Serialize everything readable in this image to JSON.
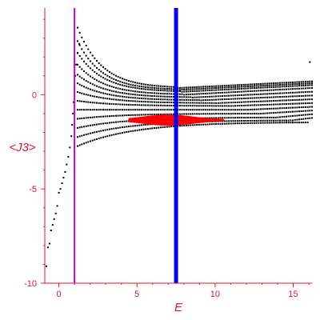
{
  "chart_data": {
    "type": "scatter",
    "title": "",
    "xlabel": "E",
    "ylabel": "<J3>",
    "xlim": [
      -0.9,
      16.2
    ],
    "ylim": [
      -10,
      4.6
    ],
    "x_ticks": [
      0,
      5,
      10,
      15
    ],
    "y_ticks": [
      0,
      -5,
      -10
    ],
    "grid": false,
    "colors": {
      "axis": "#e8112d",
      "points": "#000000",
      "highlight_points": "#ff0000",
      "magenta_line": "#cc00cc",
      "blue_line": "#0000ff"
    },
    "vertical_lines": [
      {
        "x": 1.0,
        "color": "#cc00cc"
      },
      {
        "x": 7.5,
        "color": "#0000ff"
      }
    ],
    "series": [
      {
        "color": "#000000",
        "description_points": [
          [
            -0.8,
            -9.1
          ],
          [
            -0.7,
            -8.1
          ],
          [
            -0.6,
            -7.9
          ],
          [
            -0.5,
            -7.2
          ],
          [
            -0.4,
            -6.9
          ],
          [
            -0.3,
            -6.6
          ],
          [
            -0.2,
            -6.3
          ],
          [
            -0.1,
            -5.9
          ],
          [
            0.0,
            -5.2
          ],
          [
            0.1,
            -5.0
          ],
          [
            0.2,
            -4.7
          ],
          [
            0.3,
            -4.4
          ],
          [
            0.4,
            -4.1
          ],
          [
            0.5,
            -3.7
          ],
          [
            0.6,
            -3.3
          ],
          [
            0.7,
            -2.8
          ],
          [
            0.8,
            -2.2
          ],
          [
            0.85,
            -1.6
          ],
          [
            0.9,
            -1.0
          ],
          [
            0.95,
            -0.4
          ],
          [
            1.0,
            0.3
          ],
          [
            1.05,
            1.0
          ],
          [
            1.1,
            1.6
          ],
          [
            1.2,
            2.2
          ],
          [
            1.3,
            2.7
          ]
        ]
      }
    ],
    "fan": {
      "x_start": 1.0,
      "x_end": 16.0,
      "curves": [
        {
          "y_start": 4.0,
          "y_min_x": 7.5,
          "y_min": 0.35,
          "y_end": 0.7
        },
        {
          "y_start": 3.2,
          "y_min_x": 7.5,
          "y_min": 0.25,
          "y_end": 0.6
        },
        {
          "y_start": 2.5,
          "y_min_x": 7.8,
          "y_min": 0.15,
          "y_end": 0.5
        },
        {
          "y_start": 1.8,
          "y_min_x": 8.0,
          "y_min": 0.0,
          "y_end": 0.35
        },
        {
          "y_start": 1.2,
          "y_min_x": 8.5,
          "y_min": -0.15,
          "y_end": 0.15
        },
        {
          "y_start": 0.7,
          "y_min_x": 9.0,
          "y_min": -0.3,
          "y_end": -0.05
        },
        {
          "y_start": 0.2,
          "y_min_x": 10.0,
          "y_min": -0.45,
          "y_end": -0.25
        },
        {
          "y_start": -0.3,
          "y_min_x": 11.0,
          "y_min": -0.6,
          "y_end": -0.45
        },
        {
          "y_start": -0.8,
          "y_min_x": 12.0,
          "y_min": -0.8,
          "y_end": -0.65
        },
        {
          "y_start": -1.3,
          "y_min_x": 13.0,
          "y_min": -1.0,
          "y_end": -0.85
        },
        {
          "y_start": -1.8,
          "y_min_x": 14.0,
          "y_min": -1.2,
          "y_end": -1.05
        },
        {
          "y_start": -2.3,
          "y_min_x": 15.0,
          "y_min": -1.35,
          "y_end": -1.25
        },
        {
          "y_start": -2.8,
          "y_min_x": 16.0,
          "y_min": -1.45,
          "y_end": -1.4
        }
      ],
      "red_band": {
        "x_from": 4.5,
        "x_to": 10.5,
        "y_center": -1.35,
        "half_width": 0.25
      }
    }
  }
}
